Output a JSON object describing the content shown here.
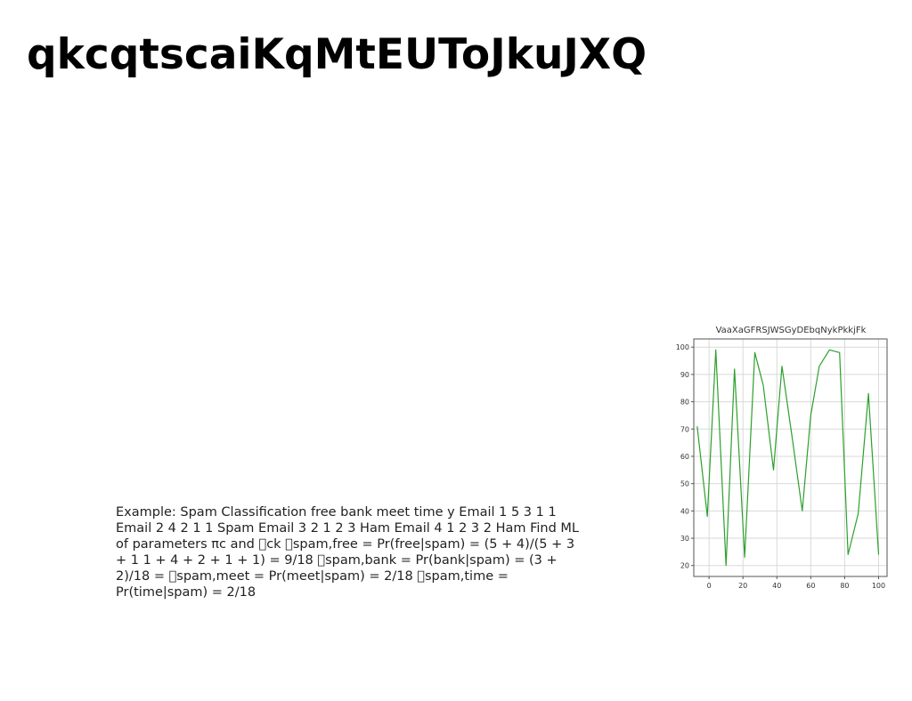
{
  "slide": {
    "title": "qkcqtscaiKqMtEUToJkuJXQ",
    "body_text": "Example: Spam Classification free bank meet time y Email 1 5 3 1 1 Email 2 4 2 1 1 Spam Email 3 2 1 2 3 Ham Email 4 1 2 3 2 Ham Find ML of parameters πc and \u0000ck \u0000spam,free = Pr(free|spam) = (5 + 4)/(5 + 3 + 1 1 + 4 + 2 + 1 + 1) = 9/18 \u0000spam,bank = Pr(bank|spam) = (3 + 2)/18 = \u0000spam,meet = Pr(meet|spam) = 2/18 \u0000spam,time = Pr(time|spam) = 2/18"
  },
  "chart_data": {
    "type": "line",
    "title": "VaaXaGFRSJWSGyDEbqNykPkkjFk",
    "xlabel": "",
    "ylabel": "",
    "xlim": [
      -9,
      105
    ],
    "ylim": [
      16,
      103
    ],
    "xticks": [
      0,
      20,
      40,
      60,
      80,
      100
    ],
    "yticks": [
      20,
      30,
      40,
      50,
      60,
      70,
      80,
      90,
      100
    ],
    "grid": true,
    "color": "#2ca02c",
    "series": [
      {
        "x": [
          -7,
          -1,
          4,
          10,
          15,
          21,
          27,
          32,
          38,
          43,
          49,
          55,
          60,
          65,
          71,
          77,
          82,
          88,
          94,
          100
        ],
        "y": [
          71,
          38,
          99,
          20,
          92,
          23,
          98,
          86,
          55,
          93,
          67,
          40,
          75,
          93,
          99,
          98,
          24,
          39,
          83,
          24
        ]
      }
    ]
  }
}
